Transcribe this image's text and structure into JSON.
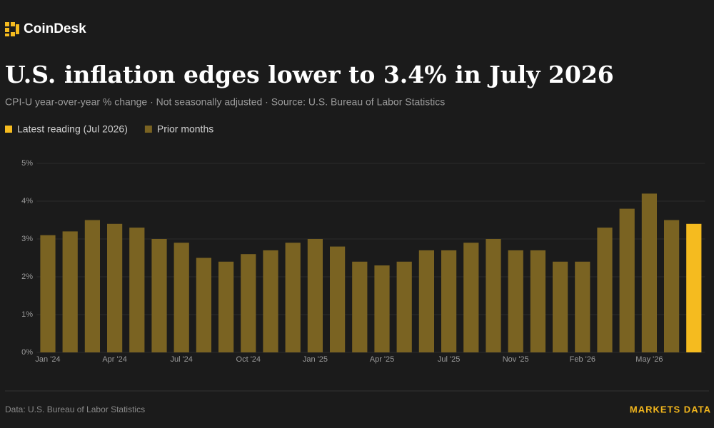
{
  "brand": "CoinDesk",
  "footer": {
    "source": "Data: U.S. Bureau of Labor Statistics",
    "tag": "MARKETS DATA"
  },
  "chart_data": {
    "type": "bar",
    "title": "U.S. inflation edges lower to 3.4% in July 2026",
    "subtitle": "CPI-U year-over-year % change · Not seasonally adjusted · Source: U.S. Bureau of Labor Statistics",
    "categories": [
      "Jan '24",
      null,
      null,
      "Apr '24",
      null,
      null,
      "Jul '24",
      null,
      null,
      "Oct '24",
      null,
      null,
      "Jan '25",
      null,
      null,
      "Apr '25",
      null,
      null,
      "Jul '25",
      null,
      null,
      "Nov '25",
      null,
      null,
      "Feb '26",
      null,
      null,
      "May '26",
      null,
      null
    ],
    "series": [
      {
        "name": "Latest reading (Jul 2026)",
        "color": "#f5bb1f",
        "values": [
          null,
          null,
          null,
          null,
          null,
          null,
          null,
          null,
          null,
          null,
          null,
          null,
          null,
          null,
          null,
          null,
          null,
          null,
          null,
          null,
          null,
          null,
          null,
          null,
          null,
          null,
          null,
          null,
          null,
          3.4
        ]
      },
      {
        "name": "Prior months",
        "color": "#7a6322",
        "values": [
          3.1,
          3.2,
          3.5,
          3.4,
          3.3,
          3.0,
          2.9,
          2.5,
          2.4,
          2.6,
          2.7,
          2.9,
          3.0,
          2.8,
          2.4,
          2.3,
          2.4,
          2.7,
          2.7,
          2.9,
          3.0,
          2.7,
          2.7,
          2.4,
          2.4,
          3.3,
          3.8,
          4.2,
          3.5,
          null
        ]
      }
    ],
    "ylim": [
      0,
      5
    ],
    "yticks": [
      {
        "value": 0,
        "label": "0%"
      },
      {
        "value": 1,
        "label": "1%"
      },
      {
        "value": 2,
        "label": "2%"
      },
      {
        "value": 3,
        "label": "3%"
      },
      {
        "value": 4,
        "label": "4%"
      },
      {
        "value": 5,
        "label": "5%"
      }
    ],
    "grid": true
  }
}
